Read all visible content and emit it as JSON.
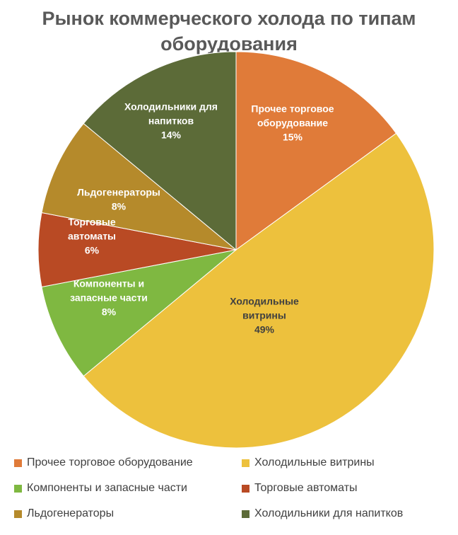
{
  "chart_data": {
    "type": "pie",
    "title": [
      "Рынок коммерческого холода по типам",
      "оборудования"
    ],
    "slices": [
      {
        "name": "Прочее торговое оборудование",
        "value": 15,
        "label_lines": [
          "Прочее торговое",
          "оборудование",
          "15%"
        ],
        "color": "#E07B39",
        "text_color": "#ffffff"
      },
      {
        "name": "Холодильные витрины",
        "value": 49,
        "label_lines": [
          "Холодильные",
          "витрины",
          "49%"
        ],
        "color": "#EDC13D",
        "text_color": "#404040"
      },
      {
        "name": "Компоненты и запасные части",
        "value": 8,
        "label_lines": [
          "Компоненты и",
          "запасные части",
          "8%"
        ],
        "color": "#7FB841",
        "text_color": "#ffffff"
      },
      {
        "name": "Торговые автоматы",
        "value": 6,
        "label_lines": [
          "Торговые",
          "автоматы",
          "6%"
        ],
        "color": "#B94A24",
        "text_color": "#ffffff"
      },
      {
        "name": "Льдогенераторы",
        "value": 8,
        "label_lines": [
          "Льдогенераторы",
          "8%"
        ],
        "color": "#B58A2B",
        "text_color": "#ffffff"
      },
      {
        "name": "Холодильники для напитков",
        "value": 14,
        "label_lines": [
          "Холодильники для",
          "напитков",
          "14%"
        ],
        "color": "#5C6B38",
        "text_color": "#ffffff"
      }
    ],
    "legend_position": "bottom"
  }
}
